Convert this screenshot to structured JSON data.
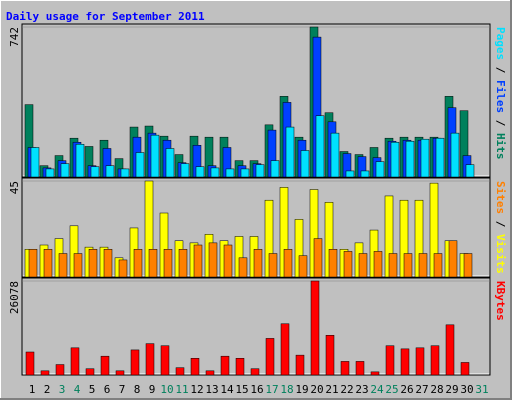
{
  "chart_data": [
    {
      "type": "bar",
      "title": "Daily usage for September 2011",
      "ylim": [
        0,
        742
      ],
      "yticks": [
        742
      ],
      "series": [
        {
          "name": "Hits",
          "color": "#00805c",
          "values": [
            358,
            56,
            106,
            192,
            151,
            182,
            91,
            247,
            252,
            202,
            111,
            202,
            197,
            197,
            81,
            81,
            258,
            399,
            197,
            742,
            318,
            126,
            111,
            146,
            192,
            197,
            197,
            197,
            399,
            328,
            0
          ]
        },
        {
          "name": "Files",
          "color": "#0040ff",
          "values": [
            146,
            45,
            81,
            172,
            56,
            141,
            40,
            197,
            217,
            182,
            71,
            157,
            56,
            146,
            56,
            66,
            232,
            369,
            182,
            692,
            273,
            116,
            101,
            96,
            177,
            182,
            182,
            192,
            343,
            106,
            0
          ]
        },
        {
          "name": "Pages",
          "color": "#00e0ff",
          "values": [
            146,
            40,
            66,
            162,
            51,
            56,
            40,
            121,
            207,
            141,
            66,
            51,
            45,
            40,
            40,
            61,
            81,
            247,
            131,
            303,
            217,
            30,
            30,
            76,
            172,
            177,
            187,
            192,
            217,
            61,
            0
          ]
        }
      ]
    },
    {
      "type": "bar",
      "ylim": [
        0,
        45
      ],
      "yticks": [
        45
      ],
      "series": [
        {
          "name": "Visits",
          "color": "#ffff00",
          "values": [
            13,
            15,
            18,
            24,
            14,
            14,
            9,
            23,
            45,
            30,
            17,
            16,
            20,
            17,
            19,
            19,
            36,
            42,
            27,
            41,
            35,
            13,
            16,
            22,
            38,
            36,
            36,
            44,
            17,
            11,
            0
          ]
        },
        {
          "name": "Sites",
          "color": "#ff8000",
          "values": [
            13,
            13,
            11,
            11,
            13,
            13,
            8,
            13,
            13,
            13,
            13,
            15,
            16,
            15,
            9,
            13,
            11,
            13,
            10,
            18,
            13,
            12,
            11,
            12,
            11,
            11,
            11,
            11,
            17,
            11,
            0
          ]
        }
      ]
    },
    {
      "type": "bar",
      "ylim": [
        0,
        26078
      ],
      "yticks": [
        26078
      ],
      "series": [
        {
          "name": "KBytes",
          "color": "#ff0000",
          "values": [
            6380,
            1160,
            2900,
            7540,
            1740,
            5220,
            1160,
            6960,
            8700,
            8120,
            2030,
            4640,
            1160,
            5220,
            4640,
            1740,
            10150,
            14210,
            5510,
            26078,
            11020,
            3770,
            3770,
            870,
            8120,
            7250,
            7540,
            8120,
            13920,
            3480,
            0
          ]
        }
      ],
      "categories": [
        "1",
        "2",
        "3",
        "4",
        "5",
        "6",
        "7",
        "8",
        "9",
        "10",
        "11",
        "12",
        "13",
        "14",
        "15",
        "16",
        "17",
        "18",
        "19",
        "20",
        "21",
        "22",
        "23",
        "24",
        "25",
        "26",
        "27",
        "28",
        "29",
        "30",
        "31"
      ],
      "category_colors": [
        "#000000",
        "#000000",
        "#00805c",
        "#00805c",
        "#000000",
        "#000000",
        "#000000",
        "#000000",
        "#000000",
        "#00805c",
        "#00805c",
        "#000000",
        "#000000",
        "#000000",
        "#000000",
        "#000000",
        "#00805c",
        "#00805c",
        "#000000",
        "#000000",
        "#000000",
        "#000000",
        "#000000",
        "#00805c",
        "#00805c",
        "#000000",
        "#000000",
        "#000000",
        "#000000",
        "#000000",
        "#00805c"
      ]
    }
  ]
}
